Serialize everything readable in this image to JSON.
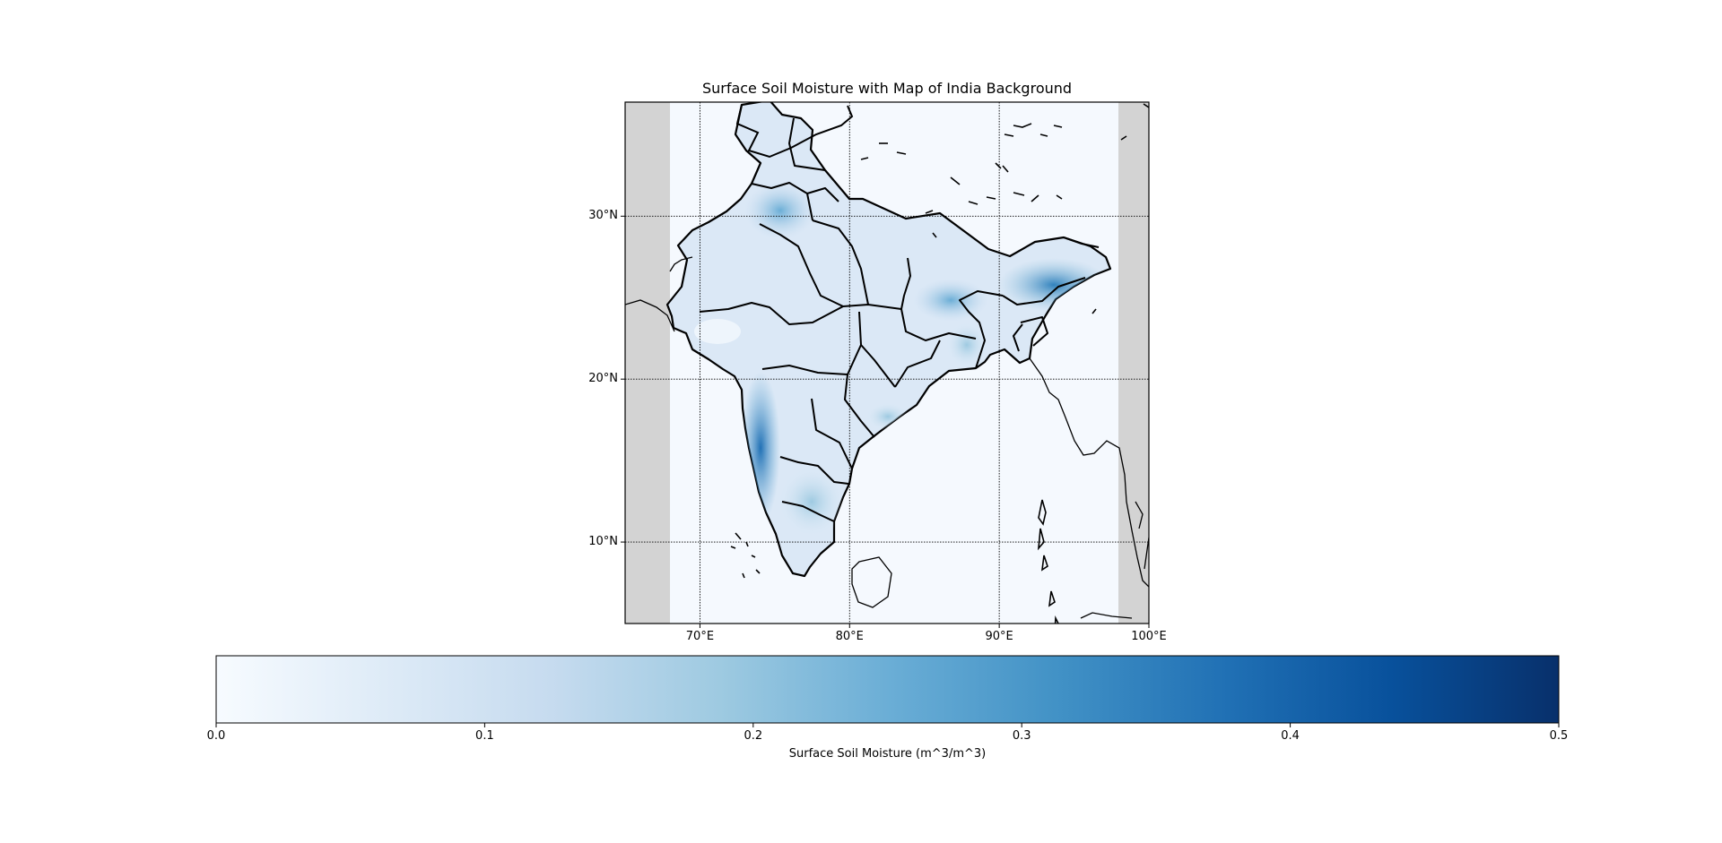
{
  "title": "Surface Soil Moisture with Map of India Background",
  "colors": {
    "nodata_gray": "#d3d3d3",
    "ocean": "#f5f9fe",
    "coast": "#000000",
    "cmap_low": "#f7fbff",
    "cmap_high": "#08306b"
  },
  "map": {
    "lon_range": [
      65,
      100
    ],
    "lat_range": [
      5,
      37
    ],
    "data_lon_range": [
      68,
      98
    ],
    "grid_lons": [
      70,
      80,
      90,
      100
    ],
    "grid_lats": [
      10,
      20,
      30
    ],
    "lon_tick_labels": [
      "70°E",
      "80°E",
      "90°E",
      "100°E"
    ],
    "lat_tick_labels": [
      "10°N",
      "20°N",
      "30°N"
    ]
  },
  "colorbar": {
    "label": "Surface Soil Moisture (m^3/m^3)",
    "range": [
      0.0,
      0.5
    ],
    "colormap": "Blues",
    "ticks": [
      0.0,
      0.1,
      0.2,
      0.3,
      0.4,
      0.5
    ],
    "tick_labels": [
      "0.0",
      "0.1",
      "0.2",
      "0.3",
      "0.4",
      "0.5"
    ]
  },
  "chart_data": {
    "type": "heatmap",
    "title": "Surface Soil Moisture with Map of India Background",
    "x_axis": {
      "label": "",
      "range": [
        65,
        100
      ],
      "units": "°E",
      "ticks": [
        70,
        80,
        90,
        100
      ]
    },
    "y_axis": {
      "label": "",
      "range": [
        5,
        37
      ],
      "units": "°N",
      "ticks": [
        10,
        20,
        30
      ]
    },
    "value_label": "Surface Soil Moisture (m^3/m^3)",
    "value_range": [
      0.0,
      0.5
    ],
    "grid": true,
    "regions_approx": [
      {
        "lon": 75.0,
        "lat": 30.5,
        "value": 0.16
      },
      {
        "lon": 72.5,
        "lat": 26.5,
        "value": 0.08
      },
      {
        "lon": 77.5,
        "lat": 24.0,
        "value": 0.1
      },
      {
        "lon": 73.5,
        "lat": 15.5,
        "value": 0.38
      },
      {
        "lon": 75.5,
        "lat": 12.5,
        "value": 0.18
      },
      {
        "lon": 86.0,
        "lat": 25.5,
        "value": 0.22
      },
      {
        "lon": 93.5,
        "lat": 26.5,
        "value": 0.3
      },
      {
        "lon": 82.0,
        "lat": 18.0,
        "value": 0.14
      },
      {
        "lon": 78.5,
        "lat": 20.5,
        "value": 0.1
      }
    ]
  }
}
